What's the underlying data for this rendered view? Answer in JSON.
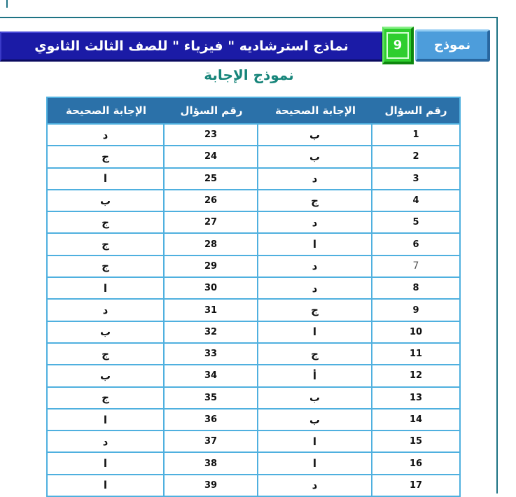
{
  "page": {
    "title_bar": "نماذج استرشاديه \" فيزياء \" للصف الثالث الثانوي",
    "model_label": "نموذج",
    "model_number": "9",
    "subtitle": "نموذج الإجابة"
  },
  "colors": {
    "title_bar_bg": "#1B1BA6",
    "model_number_bg": "#2FCE2F",
    "model_button_bg": "#4D9DDB",
    "subtitle_text": "#17857A",
    "table_header_bg": "#2B71A9",
    "table_grid": "#4FB0DF",
    "frame_line": "#1E7384"
  },
  "table": {
    "headers": [
      "رقم السؤال",
      "الإجابة الصحيحة",
      "رقم السؤال",
      "الإجابة الصحيحة"
    ],
    "rows": [
      {
        "q1": "1",
        "a1": "ب",
        "q2": "23",
        "a2": "د"
      },
      {
        "q1": "2",
        "a1": "ب",
        "q2": "24",
        "a2": "ج"
      },
      {
        "q1": "3",
        "a1": "د",
        "q2": "25",
        "a2": "ا"
      },
      {
        "q1": "4",
        "a1": "ج",
        "q2": "26",
        "a2": "ب"
      },
      {
        "q1": "5",
        "a1": "د",
        "q2": "27",
        "a2": "ج"
      },
      {
        "q1": "6",
        "a1": "ا",
        "q2": "28",
        "a2": "ج"
      },
      {
        "q1": "7",
        "a1": "د",
        "q2": "29",
        "a2": "ج",
        "muted": true
      },
      {
        "q1": "8",
        "a1": "د",
        "q2": "30",
        "a2": "ا"
      },
      {
        "q1": "9",
        "a1": "ج",
        "q2": "31",
        "a2": "د"
      },
      {
        "q1": "10",
        "a1": "ا",
        "q2": "32",
        "a2": "ب"
      },
      {
        "q1": "11",
        "a1": "ج",
        "q2": "33",
        "a2": "ج"
      },
      {
        "q1": "12",
        "a1": "أ",
        "q2": "34",
        "a2": "ب"
      },
      {
        "q1": "13",
        "a1": "ب",
        "q2": "35",
        "a2": "ج"
      },
      {
        "q1": "14",
        "a1": "ب",
        "q2": "36",
        "a2": "ا"
      },
      {
        "q1": "15",
        "a1": "ا",
        "q2": "37",
        "a2": "د"
      },
      {
        "q1": "16",
        "a1": "ا",
        "q2": "38",
        "a2": "ا"
      },
      {
        "q1": "17",
        "a1": "د",
        "q2": "39",
        "a2": "ا"
      }
    ]
  }
}
